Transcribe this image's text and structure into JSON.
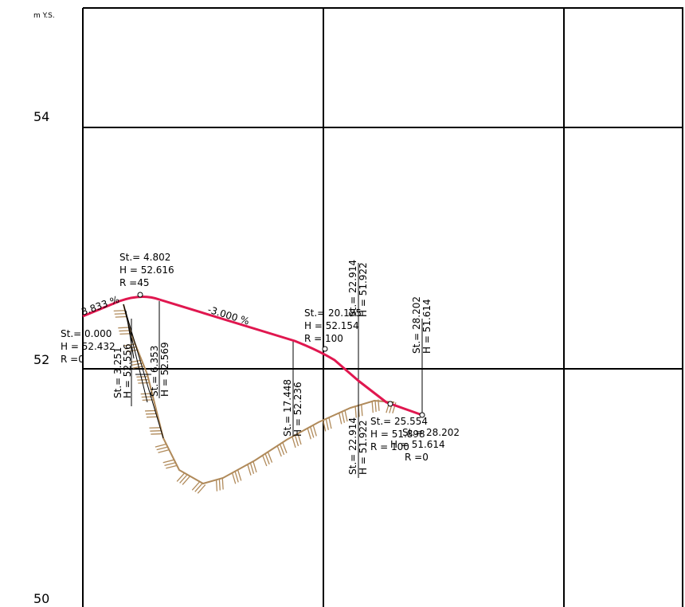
{
  "axis": {
    "unit_label": "m Y.S.",
    "y_labels": [
      {
        "text": "54",
        "value": 54
      },
      {
        "text": "52",
        "value": 52
      },
      {
        "text": "50",
        "value": 50
      }
    ]
  },
  "chart_data": {
    "type": "line",
    "title": "",
    "ylabel": "m Y.S.",
    "ylim": [
      50,
      54
    ],
    "series": [
      {
        "values": [
          {
            "station": 0.0,
            "height": 52.432
          },
          {
            "station": 4.802,
            "height": 52.616
          },
          {
            "station": 20.185,
            "height": 52.154
          },
          {
            "station": 25.554,
            "height": 51.898
          },
          {
            "station": 28.202,
            "height": 51.614
          }
        ]
      }
    ]
  },
  "grades": [
    {
      "text": "3.833 %"
    },
    {
      "text": "-3.000 %"
    }
  ],
  "labels": {
    "p0": [
      "St.= 0.000",
      "H = 52.432",
      "R =0"
    ],
    "p1": [
      "St.= 4.802",
      "H = 52.616",
      "R =45"
    ],
    "p2": [
      "St.= 20.185",
      "H = 52.154",
      "R = 100"
    ],
    "p3": [
      "St.= 25.554",
      "H = 51.898",
      "R = 100"
    ],
    "p4": [
      "St.= 28.202",
      "H = 51.614",
      "R =0"
    ]
  },
  "vertical_labels": [
    [
      "St.= 3.251",
      "H = 52.556"
    ],
    [
      "St.= 6.353",
      "H = 52.569"
    ],
    [
      "St.= 17.448",
      "H = 52.236"
    ],
    [
      "St.= 22.914",
      "H = 51.922"
    ],
    [
      "St.= 22.914",
      "H = 51.922"
    ],
    [
      "St.= 28.202",
      "H = 51.614"
    ]
  ]
}
